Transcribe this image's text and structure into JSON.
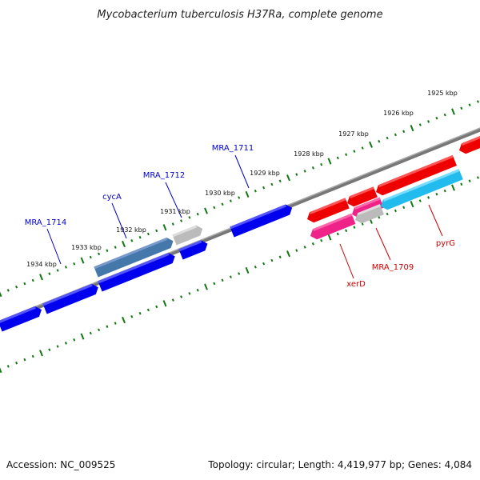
{
  "title": "Mycobacterium tuberculosis H37Ra, complete genome",
  "footer": {
    "accession": "Accession: NC_009525",
    "summary": "Topology: circular; Length: 4,419,977 bp; Genes: 4,084"
  },
  "colors": {
    "backbone": "#777777",
    "tick": "#117711",
    "forward_gene": "#0000ee",
    "reverse_gene": "#ee0000",
    "light_blue_gene": "#22bbee",
    "steel_gene": "#4477aa",
    "pink_gene": "#ee2288",
    "grey_gene": "#bbbbbb",
    "label_blue": "#0000cc",
    "label_red": "#cc0000"
  },
  "kbp_labels": [
    "1925 kbp",
    "1926 kbp",
    "1927 kbp",
    "1928 kbp",
    "1929 kbp",
    "1930 kbp",
    "1931 kbp",
    "1932 kbp",
    "1933 kbp",
    "1934 kbp"
  ],
  "gene_labels": [
    {
      "text": "MRA_1711",
      "color": "blue"
    },
    {
      "text": "MRA_1712",
      "color": "blue"
    },
    {
      "text": "cycA",
      "color": "blue"
    },
    {
      "text": "MRA_1714",
      "color": "blue"
    },
    {
      "text": "xerD",
      "color": "red"
    },
    {
      "text": "MRA_1709",
      "color": "red"
    },
    {
      "text": "pyrG",
      "color": "red"
    }
  ]
}
